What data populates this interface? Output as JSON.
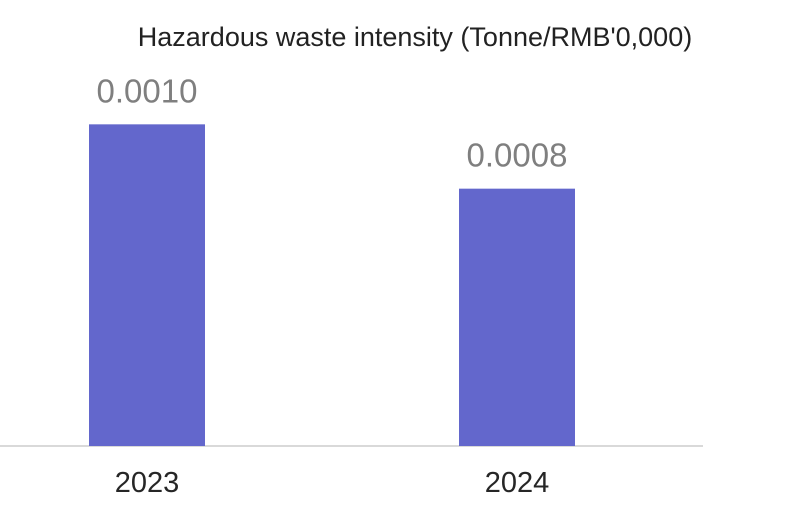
{
  "chart_data": {
    "type": "bar",
    "title": "Hazardous waste intensity (Tonne/RMB'0,000)",
    "categories": [
      "2023",
      "2024"
    ],
    "values": [
      0.001,
      0.0008
    ],
    "value_labels": [
      "0.0010",
      "0.0008"
    ],
    "xlabel": "",
    "ylabel": "",
    "ylim": [
      0,
      0.0012
    ],
    "grid": false,
    "legend": "none",
    "bar_color": "#6367cc"
  }
}
